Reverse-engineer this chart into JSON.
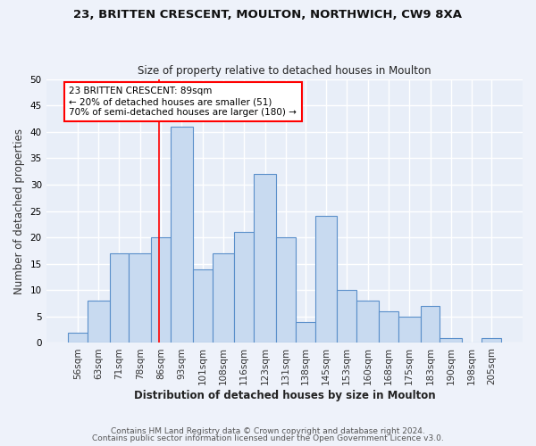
{
  "title1": "23, BRITTEN CRESCENT, MOULTON, NORTHWICH, CW9 8XA",
  "title2": "Size of property relative to detached houses in Moulton",
  "xlabel": "Distribution of detached houses by size in Moulton",
  "ylabel": "Number of detached properties",
  "categories": [
    "56sqm",
    "63sqm",
    "71sqm",
    "78sqm",
    "86sqm",
    "93sqm",
    "101sqm",
    "108sqm",
    "116sqm",
    "123sqm",
    "131sqm",
    "138sqm",
    "145sqm",
    "153sqm",
    "160sqm",
    "168sqm",
    "175sqm",
    "183sqm",
    "190sqm",
    "198sqm",
    "205sqm"
  ],
  "values": [
    2,
    8,
    17,
    17,
    20,
    41,
    14,
    17,
    21,
    32,
    20,
    4,
    24,
    10,
    8,
    6,
    5,
    7,
    1,
    0,
    1
  ],
  "bar_color": "#c8daf0",
  "bar_edge_color": "#5a8fca",
  "background_color": "#e8eef8",
  "fig_background_color": "#eef2fa",
  "grid_color": "#ffffff",
  "ylim": [
    0,
    50
  ],
  "property_line_x": 89,
  "bin_edges": [
    56,
    63,
    71,
    78,
    86,
    93,
    101,
    108,
    116,
    123,
    131,
    138,
    145,
    153,
    160,
    168,
    175,
    183,
    190,
    198,
    205,
    212
  ],
  "annotation_line1": "23 BRITTEN CRESCENT: 89sqm",
  "annotation_line2": "← 20% of detached houses are smaller (51)",
  "annotation_line3": "70% of semi-detached houses are larger (180) →",
  "footer1": "Contains HM Land Registry data © Crown copyright and database right 2024.",
  "footer2": "Contains public sector information licensed under the Open Government Licence v3.0.",
  "title1_fontsize": 9.5,
  "title2_fontsize": 8.5,
  "ylabel_fontsize": 8.5,
  "xlabel_fontsize": 8.5,
  "tick_fontsize": 7.5,
  "footer_fontsize": 6.5,
  "annot_fontsize": 7.5
}
